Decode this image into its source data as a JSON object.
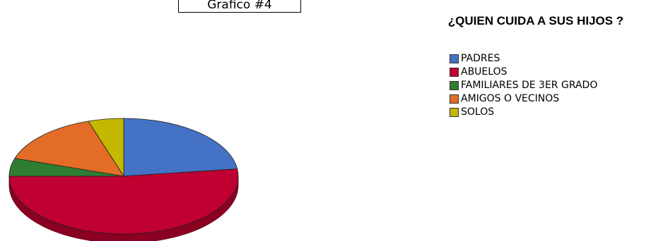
{
  "caption": "Grafico #4",
  "chart_data": {
    "type": "pie",
    "title": "¿QUIEN CUIDA A SUS HIJOS ?",
    "legend_position": "top-right",
    "slices": [
      {
        "label": "PADRES",
        "value": 23,
        "color": "#4472c4"
      },
      {
        "label": "ABUELOS",
        "value": 52,
        "color": "#c00030"
      },
      {
        "label": "FAMILIARES DE 3ER GRADO",
        "value": 5,
        "color": "#2e7d32"
      },
      {
        "label": "AMIGOS O VECINOS",
        "value": 15,
        "color": "#e36c27"
      },
      {
        "label": "SOLOS",
        "value": 5,
        "color": "#c4b800"
      }
    ]
  }
}
